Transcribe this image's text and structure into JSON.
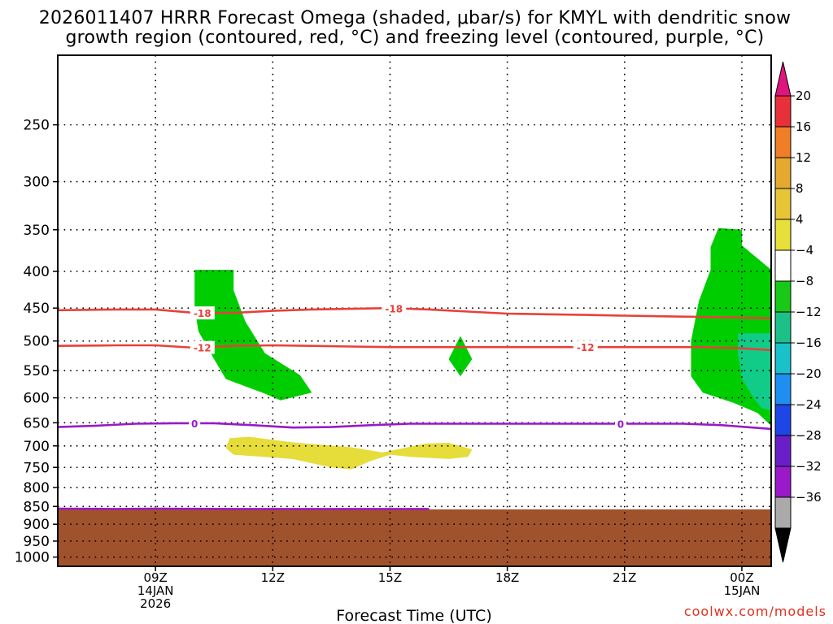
{
  "chart_data": {
    "type": "heatmap",
    "title_lines": [
      "2026011407 HRRR Forecast Omega (shaded, μbar/s) for KMYL with dendritic snow",
      "growth region (contoured, red, °C) and freezing level (contoured, purple, °C)"
    ],
    "xlabel": "Forecast Time (UTC)",
    "x_range_hours_utc": [
      6.5,
      24.75
    ],
    "y_axis": {
      "units": "hPa",
      "log_scale": true,
      "reversed": true,
      "ylim": [
        1030,
        200
      ],
      "ticks": [
        250,
        300,
        350,
        400,
        450,
        500,
        550,
        600,
        650,
        700,
        750,
        800,
        850,
        900,
        950,
        1000
      ]
    },
    "x_ticks": [
      {
        "hour": 9,
        "lines": [
          "09Z",
          "14JAN",
          "2026"
        ]
      },
      {
        "hour": 12,
        "lines": [
          "12Z"
        ]
      },
      {
        "hour": 15,
        "lines": [
          "15Z"
        ]
      },
      {
        "hour": 18,
        "lines": [
          "18Z"
        ]
      },
      {
        "hour": 21,
        "lines": [
          "21Z"
        ]
      },
      {
        "hour": 24,
        "lines": [
          "00Z",
          "15JAN"
        ]
      }
    ],
    "grid": "dotted",
    "ground": {
      "color": "#a0522d",
      "top_pressure": 858
    },
    "colorbar": {
      "levels": [
        20,
        16,
        12,
        8,
        4,
        -4,
        -8,
        -12,
        -16,
        -20,
        -24,
        -28,
        -32,
        -36
      ],
      "colors": [
        "#e8303a",
        "#f07e26",
        "#e6a92f",
        "#e6c634",
        "#e8e03a",
        "#ffffff",
        "#18c918",
        "#1ec08a",
        "#19c1c8",
        "#1e8ef0",
        "#1e46e6",
        "#6a1ec8",
        "#9a19c8",
        "#aaaaaa"
      ],
      "top_color": "#e0147e",
      "bottom_color": "#000000"
    },
    "shaded_regions": [
      {
        "value_range": [
          -8,
          -4
        ],
        "color": "#00cd00",
        "points": [
          [
            10.0,
            398
          ],
          [
            11.0,
            398
          ],
          [
            11.0,
            425
          ],
          [
            11.3,
            470
          ],
          [
            11.8,
            520
          ],
          [
            12.7,
            558
          ],
          [
            13.0,
            590
          ],
          [
            12.2,
            605
          ],
          [
            11.8,
            592
          ],
          [
            10.8,
            565
          ],
          [
            10.5,
            530
          ],
          [
            10.1,
            485
          ],
          [
            10.0,
            450
          ]
        ]
      },
      {
        "value_range": [
          -8,
          -4
        ],
        "color": "#00cd00",
        "points": [
          [
            16.8,
            492
          ],
          [
            17.1,
            530
          ],
          [
            16.8,
            560
          ],
          [
            16.5,
            530
          ]
        ]
      },
      {
        "value_range": [
          -8,
          -4
        ],
        "color": "#00cd00",
        "points": [
          [
            23.4,
            348
          ],
          [
            24.0,
            350
          ],
          [
            24.0,
            368
          ],
          [
            24.8,
            400
          ],
          [
            24.8,
            660
          ],
          [
            24.4,
            630
          ],
          [
            23.8,
            610
          ],
          [
            23.0,
            590
          ],
          [
            22.7,
            560
          ],
          [
            22.7,
            500
          ],
          [
            22.9,
            440
          ],
          [
            23.2,
            398
          ],
          [
            23.2,
            370
          ]
        ]
      },
      {
        "value_range": [
          -12,
          -8
        ],
        "color": "#10cc88",
        "points": [
          [
            23.9,
            488
          ],
          [
            24.75,
            488
          ],
          [
            24.75,
            625
          ],
          [
            24.5,
            620
          ],
          [
            24.3,
            600
          ],
          [
            24.0,
            565
          ],
          [
            23.9,
            520
          ]
        ]
      },
      {
        "value_range": [
          4,
          8
        ],
        "color": "#e6dc3a",
        "points": [
          [
            10.9,
            683
          ],
          [
            11.4,
            680
          ],
          [
            12.5,
            692
          ],
          [
            14.0,
            703
          ],
          [
            14.8,
            715
          ],
          [
            15.9,
            695
          ],
          [
            16.5,
            693
          ],
          [
            17.1,
            708
          ],
          [
            17.0,
            725
          ],
          [
            16.5,
            730
          ],
          [
            15.5,
            725
          ],
          [
            15.0,
            720
          ],
          [
            14.5,
            735
          ],
          [
            14.0,
            755
          ],
          [
            13.5,
            750
          ],
          [
            12.5,
            730
          ],
          [
            11.0,
            720
          ],
          [
            10.8,
            705
          ]
        ]
      }
    ],
    "series": [
      {
        "name": "-18",
        "color": "#e8403a",
        "label_positions": [
          10.2,
          15.1
        ],
        "x": [
          6.5,
          8,
          9,
          10,
          11,
          12,
          13,
          14,
          15,
          16,
          17,
          18,
          19,
          20,
          21,
          22,
          23,
          24,
          24.75
        ],
        "y": [
          453,
          452,
          452,
          457,
          457,
          454,
          452,
          451,
          450,
          452,
          455,
          458,
          459,
          460,
          461,
          462,
          463,
          464,
          465
        ]
      },
      {
        "name": "-12",
        "color": "#e8403a",
        "label_positions": [
          10.2,
          20.0
        ],
        "x": [
          6.5,
          8,
          9,
          10,
          11,
          12,
          13,
          14,
          15,
          16,
          17,
          18,
          19,
          20,
          21,
          22,
          23,
          24,
          24.75
        ],
        "y": [
          508,
          507,
          507,
          511,
          508,
          507,
          508,
          509,
          510,
          510,
          510,
          510,
          510,
          510,
          510,
          510,
          510,
          512,
          515
        ]
      },
      {
        "name": "0",
        "color": "#9a19c8",
        "label_positions": [
          10.0,
          20.9
        ],
        "x": [
          6.5,
          7.5,
          8.5,
          9.5,
          10.5,
          11.5,
          12.5,
          13.5,
          14.5,
          15.5,
          16.5,
          17.5,
          18.5,
          19.5,
          20.5,
          21.5,
          22.5,
          23.5,
          24.75
        ],
        "y": [
          659,
          656,
          652,
          651,
          651,
          655,
          660,
          659,
          655,
          652,
          652,
          652,
          652,
          652,
          652,
          652,
          652,
          655,
          663
        ]
      },
      {
        "name": "0",
        "color": "#9a19c8",
        "label_positions": [],
        "x": [
          6.5,
          8,
          9,
          11,
          13,
          16
        ],
        "y": [
          856,
          857,
          856,
          857,
          857,
          857
        ]
      }
    ],
    "credit": "coolwx.com/models"
  }
}
